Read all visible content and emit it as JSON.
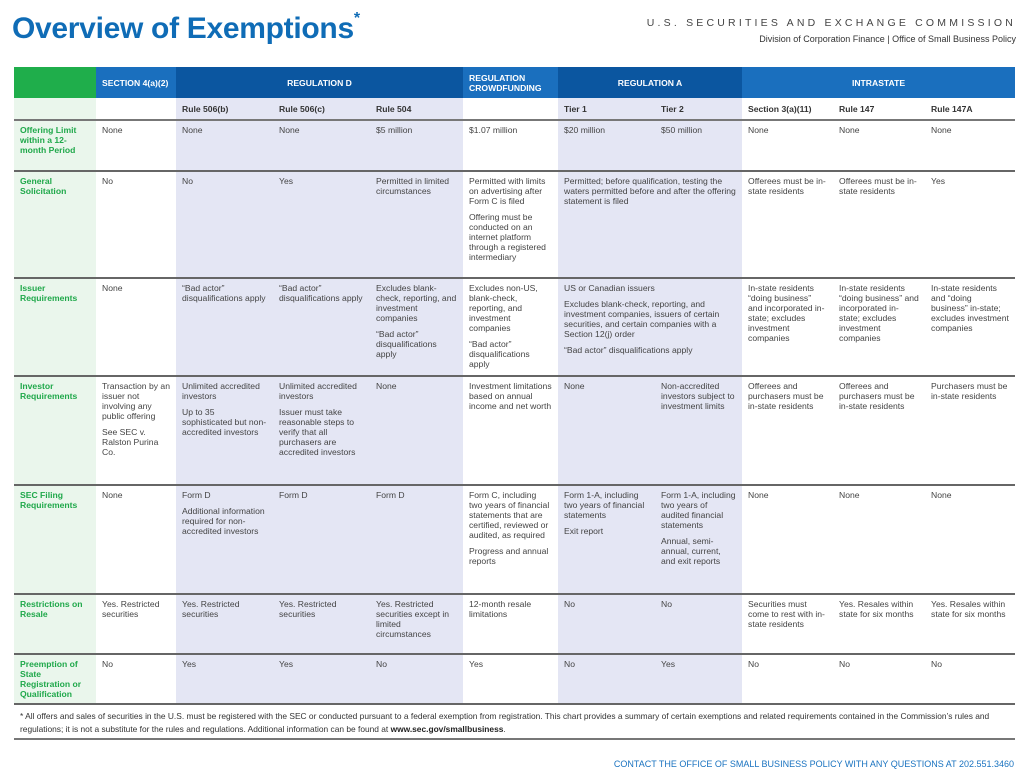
{
  "header": {
    "title": "Overview of Exemptions",
    "title_mark": "*",
    "agency": "U.S. SECURITIES AND EXCHANGE COMMISSION",
    "division": "Division of Corporation Finance | Office of Small Business Policy"
  },
  "colors": {
    "green": "#1fae4b",
    "blue_light": "#1a6fbe",
    "blue_dark": "#0b56a0",
    "shade": "#e4e6f4",
    "label_bg": "#eaf6ec"
  },
  "groups": [
    {
      "label": "",
      "span": 1,
      "color": "green"
    },
    {
      "label": "SECTION 4(a)(2)",
      "span": 1,
      "color": "blue_light"
    },
    {
      "label": "REGULATION D",
      "span": 3,
      "color": "blue_dark"
    },
    {
      "label": "REGULATION CROWDFUNDING",
      "span": 1,
      "color": "blue_light"
    },
    {
      "label": "REGULATION A",
      "span": 2,
      "color": "blue_dark"
    },
    {
      "label": "INTRASTATE",
      "span": 3,
      "color": "blue_light"
    }
  ],
  "subheaders": [
    "",
    "",
    "Rule 506(b)",
    "Rule 506(c)",
    "Rule 504",
    "",
    "Tier 1",
    "Tier 2",
    "Section 3(a)(11)",
    "Rule 147",
    "Rule 147A"
  ],
  "rows": [
    {
      "label": "Offering Limit within a 12-month Period",
      "cells": [
        {
          "p": [
            "None"
          ]
        },
        {
          "p": [
            "None"
          ]
        },
        {
          "p": [
            "None"
          ]
        },
        {
          "p": [
            "$5 million"
          ]
        },
        {
          "p": [
            "$1.07 million"
          ]
        },
        {
          "p": [
            "$20 million"
          ]
        },
        {
          "p": [
            "$50 million"
          ]
        },
        {
          "p": [
            "None"
          ]
        },
        {
          "p": [
            "None"
          ]
        },
        {
          "p": [
            "None"
          ]
        }
      ]
    },
    {
      "label": "General Solicitation",
      "cells": [
        {
          "p": [
            "No"
          ]
        },
        {
          "p": [
            "No"
          ]
        },
        {
          "p": [
            "Yes"
          ]
        },
        {
          "p": [
            "Permitted in limited circumstances"
          ]
        },
        {
          "p": [
            "Permitted with limits on advertising after Form C is filed",
            "Offering must be conducted on an internet platform through a registered intermediary"
          ]
        },
        {
          "p": [
            "Permitted; before qualification, testing the waters permitted before and after the offering statement is filed"
          ],
          "span": 2
        },
        {
          "p": [
            "Offerees must be in-state residents"
          ]
        },
        {
          "p": [
            "Offerees must be in-state residents"
          ]
        },
        {
          "p": [
            "Yes"
          ]
        }
      ]
    },
    {
      "label": "Issuer Requirements",
      "cells": [
        {
          "p": [
            "None"
          ]
        },
        {
          "p": [
            "“Bad actor” disqualifications apply"
          ]
        },
        {
          "p": [
            "“Bad actor” disqualifications apply"
          ]
        },
        {
          "p": [
            "Excludes blank-check, reporting, and investment companies",
            "“Bad actor” disqualifications apply"
          ]
        },
        {
          "p": [
            "Excludes non-US, blank-check, reporting, and investment companies",
            "“Bad actor” disqualifications apply"
          ]
        },
        {
          "p": [
            "US or Canadian issuers",
            "Excludes blank-check, reporting, and investment companies, issuers of certain securities, and certain companies with a Section 12(j) order",
            "“Bad actor” disqualifications apply"
          ],
          "span": 2
        },
        {
          "p": [
            "In-state residents “doing business” and incorporated in-state; excludes investment companies"
          ]
        },
        {
          "p": [
            "In-state residents “doing business” and incorporated in-state; excludes investment companies"
          ]
        },
        {
          "p": [
            "In-state residents and “doing business” in-state; excludes investment companies"
          ]
        }
      ]
    },
    {
      "label": "Investor Requirements",
      "cells": [
        {
          "p": [
            "Transaction by an issuer not involving any public offering",
            "See SEC v. Ralston Purina Co."
          ]
        },
        {
          "p": [
            "Unlimited accredited investors",
            "Up to 35 sophisticated but non-accredited investors"
          ]
        },
        {
          "p": [
            "Unlimited accredited investors",
            "Issuer must take reasonable steps to verify that all purchasers are accredited investors"
          ]
        },
        {
          "p": [
            "None"
          ]
        },
        {
          "p": [
            "Investment limitations based on annual income and net worth"
          ]
        },
        {
          "p": [
            "None"
          ]
        },
        {
          "p": [
            "Non-accredited investors subject to investment limits"
          ]
        },
        {
          "p": [
            "Offerees and purchasers must be in-state residents"
          ]
        },
        {
          "p": [
            "Offerees and purchasers must be in-state residents"
          ]
        },
        {
          "p": [
            "Purchasers must be in-state residents"
          ]
        }
      ]
    },
    {
      "label": "SEC Filing Requirements",
      "cells": [
        {
          "p": [
            "None"
          ]
        },
        {
          "p": [
            "Form D",
            "Additional information required for non-accredited investors"
          ]
        },
        {
          "p": [
            "Form D"
          ]
        },
        {
          "p": [
            "Form D"
          ]
        },
        {
          "p": [
            "Form C, including two years of financial statements that are certified, reviewed or audited, as required",
            "Progress and annual reports"
          ]
        },
        {
          "p": [
            "Form 1-A, including two years of financial statements",
            "Exit report"
          ]
        },
        {
          "p": [
            "Form 1-A, including two years of audited financial statements",
            "Annual, semi-annual, current, and exit reports"
          ]
        },
        {
          "p": [
            "None"
          ]
        },
        {
          "p": [
            "None"
          ]
        },
        {
          "p": [
            "None"
          ]
        }
      ]
    },
    {
      "label": "Restrictions on Resale",
      "cells": [
        {
          "p": [
            "Yes. Restricted securities"
          ]
        },
        {
          "p": [
            "Yes. Restricted securities"
          ]
        },
        {
          "p": [
            "Yes. Restricted securities"
          ]
        },
        {
          "p": [
            "Yes. Restricted securities except in limited circumstances"
          ]
        },
        {
          "p": [
            "12-month resale limitations"
          ]
        },
        {
          "p": [
            "No"
          ]
        },
        {
          "p": [
            "No"
          ]
        },
        {
          "p": [
            "Securities must come to rest with in-state residents"
          ]
        },
        {
          "p": [
            "Yes. Resales within state for six months"
          ]
        },
        {
          "p": [
            "Yes. Resales within state for six months"
          ]
        }
      ]
    },
    {
      "label": "Preemption of State Registration or Qualification",
      "cells": [
        {
          "p": [
            "No"
          ]
        },
        {
          "p": [
            "Yes"
          ]
        },
        {
          "p": [
            "Yes"
          ]
        },
        {
          "p": [
            "No"
          ]
        },
        {
          "p": [
            "Yes"
          ]
        },
        {
          "p": [
            "No"
          ]
        },
        {
          "p": [
            "Yes"
          ]
        },
        {
          "p": [
            "No"
          ]
        },
        {
          "p": [
            "No"
          ]
        },
        {
          "p": [
            "No"
          ]
        }
      ]
    }
  ],
  "footnote": {
    "text": "* All offers and sales of securities in the U.S. must be registered with the SEC or conducted pursuant to a federal exemption from registration. This chart provides a summary of certain exemptions and related requirements contained in the Commission’s rules and regulations; it is not a substitute for the rules and regulations.  Additional information can be found at ",
    "link": "www.sec.gov/smallbusiness",
    "end": "."
  },
  "contact": "CONTACT THE OFFICE OF SMALL BUSINESS POLICY WITH ANY QUESTIONS AT 202.551.3460"
}
